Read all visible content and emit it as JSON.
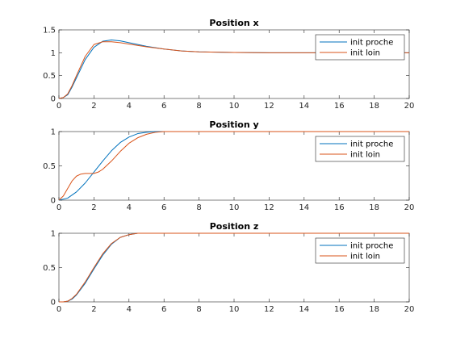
{
  "colors": {
    "series1": "#0072BD",
    "series2": "#D95319"
  },
  "chart_data": [
    {
      "type": "line",
      "title": "Position x",
      "xlabel": "",
      "ylabel": "",
      "xlim": [
        0,
        20
      ],
      "ylim": [
        0,
        1.5
      ],
      "xticks": [
        "0",
        "2",
        "4",
        "6",
        "8",
        "10",
        "12",
        "14",
        "16",
        "18",
        "20"
      ],
      "yticks": [
        "0",
        "0.5",
        "1",
        "1.5"
      ],
      "grid": false,
      "legend": "top-right",
      "series": [
        {
          "name": "init proche",
          "x": [
            0,
            0.25,
            0.5,
            0.75,
            1,
            1.5,
            2,
            2.5,
            3,
            3.5,
            4,
            5,
            6,
            7,
            8,
            10,
            12,
            14,
            16,
            18,
            20
          ],
          "y": [
            0,
            0.02,
            0.08,
            0.25,
            0.45,
            0.85,
            1.12,
            1.25,
            1.28,
            1.26,
            1.22,
            1.14,
            1.08,
            1.04,
            1.02,
            1.005,
            1.0,
            1.0,
            1.0,
            1.0,
            1.0
          ]
        },
        {
          "name": "init loin",
          "x": [
            0,
            0.25,
            0.5,
            0.75,
            1,
            1.5,
            2,
            2.5,
            3,
            3.5,
            4,
            5,
            6,
            7,
            8,
            10,
            12,
            14,
            16,
            18,
            20
          ],
          "y": [
            0,
            0.02,
            0.1,
            0.28,
            0.5,
            0.92,
            1.18,
            1.24,
            1.24,
            1.22,
            1.19,
            1.13,
            1.08,
            1.04,
            1.02,
            1.005,
            1.0,
            1.0,
            1.0,
            1.0,
            1.0
          ]
        }
      ]
    },
    {
      "type": "line",
      "title": "Position y",
      "xlabel": "",
      "ylabel": "",
      "xlim": [
        0,
        20
      ],
      "ylim": [
        0,
        1
      ],
      "xticks": [
        "0",
        "2",
        "4",
        "6",
        "8",
        "10",
        "12",
        "14",
        "16",
        "18",
        "20"
      ],
      "yticks": [
        "0",
        "0.5",
        "1"
      ],
      "grid": false,
      "legend": "top-right",
      "series": [
        {
          "name": "init proche",
          "x": [
            0,
            0.5,
            1,
            1.5,
            2,
            2.5,
            3,
            3.5,
            4,
            4.5,
            5,
            5.5,
            6,
            7,
            8,
            10,
            12,
            14,
            16,
            18,
            20
          ],
          "y": [
            0,
            0.03,
            0.12,
            0.25,
            0.41,
            0.57,
            0.72,
            0.84,
            0.92,
            0.97,
            0.99,
            1.0,
            1.0,
            1.0,
            1.0,
            1.0,
            1.0,
            1.0,
            1.0,
            1.0,
            1.0
          ],
          "y_note": null
        },
        {
          "name": "init loin",
          "x": [
            0,
            0.25,
            0.5,
            0.75,
            1,
            1.25,
            1.5,
            1.75,
            2,
            2.25,
            2.5,
            3,
            3.5,
            4,
            4.5,
            5,
            5.5,
            6,
            7,
            8,
            10,
            12,
            14,
            16,
            18,
            20
          ],
          "y": [
            0,
            0.06,
            0.17,
            0.28,
            0.35,
            0.38,
            0.39,
            0.39,
            0.39,
            0.41,
            0.45,
            0.57,
            0.71,
            0.83,
            0.91,
            0.96,
            0.99,
            1.0,
            1.0,
            1.0,
            1.0,
            1.0,
            1.0,
            1.0,
            1.0,
            1.0
          ]
        }
      ]
    },
    {
      "type": "line",
      "title": "Position z",
      "xlabel": "",
      "ylabel": "",
      "xlim": [
        0,
        20
      ],
      "ylim": [
        0,
        1
      ],
      "xticks": [
        "0",
        "2",
        "4",
        "6",
        "8",
        "10",
        "12",
        "14",
        "16",
        "18",
        "20"
      ],
      "yticks": [
        "0",
        "0.5",
        "1"
      ],
      "grid": false,
      "legend": "top-right",
      "series": [
        {
          "name": "init proche",
          "x": [
            0,
            0.25,
            0.5,
            0.75,
            1,
            1.5,
            2,
            2.5,
            3,
            3.5,
            4,
            4.5,
            5,
            6,
            8,
            10,
            12,
            14,
            16,
            18,
            20
          ],
          "y": [
            0,
            0.0,
            0.01,
            0.04,
            0.1,
            0.27,
            0.48,
            0.68,
            0.84,
            0.94,
            0.98,
            1.0,
            1.0,
            1.0,
            1.0,
            1.0,
            1.0,
            1.0,
            1.0,
            1.0,
            1.0
          ]
        },
        {
          "name": "init loin",
          "x": [
            0,
            0.25,
            0.5,
            0.75,
            1,
            1.5,
            2,
            2.5,
            3,
            3.5,
            4,
            4.5,
            5,
            6,
            8,
            10,
            12,
            14,
            16,
            18,
            20
          ],
          "y": [
            0,
            0.0,
            0.01,
            0.05,
            0.11,
            0.29,
            0.5,
            0.7,
            0.85,
            0.94,
            0.98,
            1.0,
            1.0,
            1.0,
            1.0,
            1.0,
            1.0,
            1.0,
            1.0,
            1.0,
            1.0
          ]
        }
      ]
    }
  ]
}
